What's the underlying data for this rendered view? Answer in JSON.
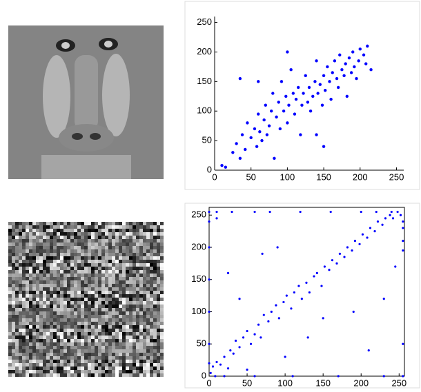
{
  "chart_data": [
    {
      "type": "scatter",
      "color": "#0000ff",
      "xlim": [
        0,
        260
      ],
      "ylim": [
        0,
        260
      ],
      "xticks": [
        0,
        50,
        100,
        150,
        200,
        250
      ],
      "yticks": [
        0,
        50,
        100,
        150,
        200,
        250
      ],
      "box": false,
      "x": [
        10,
        15,
        25,
        30,
        35,
        38,
        42,
        45,
        50,
        55,
        58,
        60,
        62,
        65,
        68,
        70,
        72,
        75,
        78,
        80,
        82,
        85,
        88,
        90,
        92,
        95,
        98,
        100,
        102,
        105,
        108,
        110,
        112,
        115,
        118,
        120,
        122,
        125,
        128,
        130,
        132,
        135,
        138,
        140,
        142,
        145,
        148,
        150,
        152,
        155,
        158,
        160,
        162,
        165,
        168,
        170,
        172,
        175,
        178,
        180,
        182,
        185,
        188,
        190,
        192,
        195,
        198,
        200,
        205,
        208,
        210,
        215,
        150,
        140,
        100,
        60,
        35
      ],
      "values": [
        8,
        5,
        30,
        45,
        20,
        60,
        35,
        80,
        55,
        70,
        40,
        95,
        65,
        50,
        85,
        110,
        60,
        75,
        100,
        130,
        20,
        90,
        115,
        70,
        150,
        100,
        125,
        80,
        110,
        170,
        130,
        95,
        120,
        140,
        60,
        110,
        130,
        160,
        115,
        140,
        100,
        125,
        150,
        185,
        130,
        145,
        110,
        160,
        135,
        175,
        150,
        120,
        165,
        185,
        155,
        140,
        195,
        170,
        160,
        180,
        125,
        190,
        165,
        200,
        175,
        155,
        185,
        205,
        195,
        180,
        210,
        170,
        40,
        60,
        200,
        150,
        155
      ]
    },
    {
      "type": "scatter",
      "color": "#0000ff",
      "xlim": [
        0,
        257
      ],
      "ylim": [
        0,
        262
      ],
      "xticks": [
        0,
        50,
        100,
        150,
        200,
        250
      ],
      "yticks": [
        0,
        50,
        100,
        150,
        200,
        250
      ],
      "box": true,
      "x": [
        2,
        5,
        8,
        10,
        15,
        20,
        25,
        28,
        32,
        35,
        40,
        45,
        50,
        55,
        60,
        65,
        68,
        72,
        78,
        82,
        88,
        92,
        98,
        102,
        108,
        112,
        118,
        122,
        128,
        132,
        138,
        142,
        148,
        152,
        158,
        162,
        168,
        172,
        178,
        182,
        188,
        192,
        198,
        202,
        208,
        212,
        218,
        222,
        228,
        232,
        238,
        242,
        248,
        252,
        255,
        255,
        255,
        255,
        255,
        255,
        0,
        0,
        0,
        0,
        0,
        0,
        0,
        10,
        30,
        60,
        80,
        120,
        160,
        200,
        220,
        240,
        20,
        60,
        110,
        170,
        230,
        10,
        25,
        40,
        70,
        100,
        130,
        150,
        190,
        210,
        230,
        90,
        50,
        245
      ],
      "values": [
        5,
        15,
        0,
        22,
        18,
        30,
        12,
        40,
        35,
        55,
        45,
        60,
        70,
        50,
        65,
        80,
        60,
        95,
        85,
        100,
        110,
        90,
        115,
        125,
        105,
        130,
        140,
        120,
        145,
        130,
        155,
        160,
        140,
        170,
        165,
        180,
        175,
        190,
        185,
        200,
        195,
        210,
        205,
        220,
        215,
        230,
        225,
        240,
        235,
        245,
        250,
        245,
        255,
        250,
        240,
        230,
        210,
        195,
        50,
        0,
        255,
        240,
        200,
        150,
        100,
        50,
        20,
        255,
        255,
        255,
        255,
        255,
        255,
        255,
        255,
        255,
        0,
        0,
        0,
        0,
        0,
        245,
        160,
        120,
        190,
        30,
        60,
        90,
        100,
        40,
        120,
        200,
        10,
        170
      ]
    }
  ]
}
